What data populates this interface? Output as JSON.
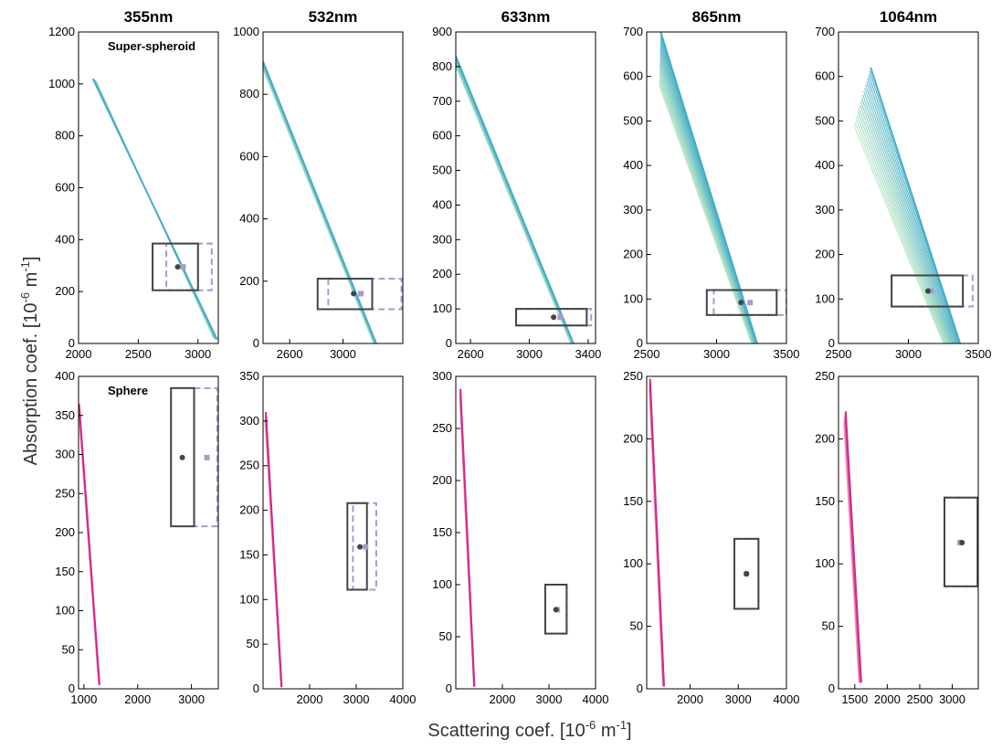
{
  "chart_data": {
    "type": "line",
    "figure": {
      "xlabel": "Scattering coef. [10",
      "xlabel_exp1": "-6",
      "xlabel_mid": " m",
      "xlabel_exp2": "-1",
      "xlabel_end": "]",
      "ylabel": "Absorption coef. [10",
      "ylabel_exp1": "-6",
      "ylabel_mid": " m",
      "ylabel_exp2": "-1",
      "ylabel_end": "]",
      "grid": false,
      "colors": {
        "spheroid_light": "#bde7c4",
        "spheroid_dark": "#43aec8",
        "sphere_light": "#f7b7cf",
        "sphere_dark": "#d3268b",
        "measurement_solid": "#444444",
        "measurement_dashed": "#a79bd1"
      }
    },
    "columns": [
      "355nm",
      "532nm",
      "633nm",
      "865nm",
      "1064nm"
    ],
    "rows": [
      {
        "model": "Super-spheroid",
        "panel_label": "Super-spheroid",
        "panels": [
          {
            "xlim": [
              2000,
              3170
            ],
            "ylim": [
              0,
              1200
            ],
            "xticks": [
              "2000",
              "2500",
              "3000"
            ],
            "yticks": [
              "0",
              "200",
              "400",
              "600",
              "800",
              "1000",
              "1200"
            ],
            "fan": {
              "x0": [
                2150,
                2120
              ],
              "y0": [
                1010,
                1020
              ],
              "x1": [
                3130,
                3160
              ],
              "y1": [
                20,
                15
              ],
              "curves": 12
            },
            "box_solid": {
              "x": [
                2620,
                3000
              ],
              "y": [
                205,
                385
              ]
            },
            "box_dashed": {
              "x": [
                2735,
                3115
              ],
              "y": [
                205,
                385
              ]
            },
            "point_solid": [
              2830,
              295
            ],
            "point_dashed": [
              2875,
              295
            ]
          },
          {
            "xlim": [
              2400,
              3450
            ],
            "ylim": [
              0,
              1000
            ],
            "xticks": [
              "2600",
              "3000"
            ],
            "yticks": [
              "0",
              "200",
              "400",
              "600",
              "800",
              "1000"
            ],
            "fan": {
              "x0": [
                2400,
                2400
              ],
              "y0": [
                880,
                905
              ],
              "x1": [
                3230,
                3250
              ],
              "y1": [
                0,
                0
              ],
              "curves": 12
            },
            "box_solid": {
              "x": [
                2810,
                3220
              ],
              "y": [
                110,
                208
              ]
            },
            "box_dashed": {
              "x": [
                2890,
                3440
              ],
              "y": [
                110,
                208
              ]
            },
            "point_solid": [
              3080,
              160
            ],
            "point_dashed": [
              3135,
              160
            ]
          },
          {
            "xlim": [
              2500,
              3450
            ],
            "ylim": [
              0,
              900
            ],
            "xticks": [
              "2600",
              "3000",
              "3400"
            ],
            "yticks": [
              "0",
              "100",
              "200",
              "300",
              "400",
              "500",
              "600",
              "700",
              "800",
              "900"
            ],
            "fan": {
              "x0": [
                2500,
                2500
              ],
              "y0": [
                800,
                830
              ],
              "x1": [
                3280,
                3300
              ],
              "y1": [
                0,
                0
              ],
              "curves": 12
            },
            "box_solid": {
              "x": [
                2910,
                3390
              ],
              "y": [
                52,
                100
              ]
            },
            "box_dashed": {
              "x": [
                2910,
                3420
              ],
              "y": [
                52,
                100
              ]
            },
            "point_solid": [
              3165,
              76
            ],
            "point_dashed": [
              3210,
              76
            ]
          },
          {
            "xlim": [
              2500,
              3500
            ],
            "ylim": [
              0,
              700
            ],
            "xticks": [
              "2500",
              "3000",
              "3500"
            ],
            "yticks": [
              "0",
              "100",
              "200",
              "300",
              "400",
              "500",
              "600",
              "700"
            ],
            "fan": {
              "x0": [
                2590,
                2600
              ],
              "y0": [
                580,
                700
              ],
              "x1": [
                3250,
                3290
              ],
              "y1": [
                0,
                0
              ],
              "curves": 18
            },
            "box_solid": {
              "x": [
                2930,
                3430
              ],
              "y": [
                64,
                120
              ]
            },
            "box_dashed": {
              "x": [
                2980,
                3500
              ],
              "y": [
                64,
                120
              ]
            },
            "point_solid": [
              3175,
              92
            ],
            "point_dashed": [
              3240,
              92
            ]
          },
          {
            "xlim": [
              2500,
              3500
            ],
            "ylim": [
              0,
              700
            ],
            "xticks": [
              "2500",
              "3000",
              "3500"
            ],
            "yticks": [
              "0",
              "100",
              "200",
              "300",
              "400",
              "500",
              "600",
              "700"
            ],
            "fan": {
              "x0": [
                2610,
                2730
              ],
              "y0": [
                490,
                620
              ],
              "x1": [
                3250,
                3370
              ],
              "y1": [
                0,
                0
              ],
              "curves": 18
            },
            "box_solid": {
              "x": [
                2880,
                3390
              ],
              "y": [
                83,
                153
              ]
            },
            "box_dashed": {
              "x": [
                2880,
                3460
              ],
              "y": [
                83,
                153
              ]
            },
            "point_solid": [
              3140,
              118
            ],
            "point_dashed": [
              3165,
              118
            ]
          }
        ]
      },
      {
        "model": "Sphere",
        "panel_label": "Sphere",
        "panels": [
          {
            "xlim": [
              900,
              3500
            ],
            "ylim": [
              0,
              400
            ],
            "xticks": [
              "1000",
              "2000",
              "3000"
            ],
            "yticks": [
              "0",
              "50",
              "100",
              "150",
              "200",
              "250",
              "300",
              "350",
              "400"
            ],
            "fan": {
              "x0": [
                900,
                910
              ],
              "y0": [
                355,
                365
              ],
              "x1": [
                1270,
                1290
              ],
              "y1": [
                5,
                5
              ],
              "curves": 8
            },
            "box_solid": {
              "x": [
                2620,
                3050
              ],
              "y": [
                208,
                385
              ]
            },
            "box_dashed": {
              "x": [
                3050,
                3480
              ],
              "y": [
                208,
                385
              ]
            },
            "point_solid": [
              2830,
              296
            ],
            "point_dashed": [
              3290,
              296
            ]
          },
          {
            "xlim": [
              1000,
              4000
            ],
            "ylim": [
              0,
              350
            ],
            "xticks": [
              "2000",
              "3000",
              "4000"
            ],
            "yticks": [
              "0",
              "50",
              "100",
              "150",
              "200",
              "250",
              "300",
              "350"
            ],
            "fan": {
              "x0": [
                1040,
                1060
              ],
              "y0": [
                300,
                310
              ],
              "x1": [
                1380,
                1400
              ],
              "y1": [
                2,
                2
              ],
              "curves": 8
            },
            "box_solid": {
              "x": [
                2810,
                3230
              ],
              "y": [
                111,
                208
              ]
            },
            "box_dashed": {
              "x": [
                2930,
                3430
              ],
              "y": [
                111,
                208
              ]
            },
            "point_solid": [
              3080,
              159
            ],
            "point_dashed": [
              3200,
              159
            ]
          },
          {
            "xlim": [
              1000,
              4000
            ],
            "ylim": [
              0,
              300
            ],
            "xticks": [
              "2000",
              "3000",
              "4000"
            ],
            "yticks": [
              "0",
              "50",
              "100",
              "150",
              "200",
              "250",
              "300"
            ],
            "fan": {
              "x0": [
                1080,
                1100
              ],
              "y0": [
                280,
                288
              ],
              "x1": [
                1380,
                1400
              ],
              "y1": [
                2,
                2
              ],
              "curves": 8
            },
            "box_solid": {
              "x": [
                2920,
                3380
              ],
              "y": [
                53,
                100
              ]
            },
            "box_dashed": {
              "x": [
                2920,
                3380
              ],
              "y": [
                53,
                100
              ]
            },
            "point_solid": [
              3150,
              76
            ],
            "point_dashed": [
              3180,
              76
            ]
          },
          {
            "xlim": [
              1100,
              4000
            ],
            "ylim": [
              0,
              250
            ],
            "xticks": [
              "2000",
              "3000",
              "4000"
            ],
            "yticks": [
              "0",
              "50",
              "100",
              "150",
              "200",
              "250"
            ],
            "fan": {
              "x0": [
                1150,
                1170
              ],
              "y0": [
                240,
                248
              ],
              "x1": [
                1430,
                1460
              ],
              "y1": [
                2,
                2
              ],
              "curves": 8
            },
            "box_solid": {
              "x": [
                2920,
                3420
              ],
              "y": [
                64,
                120
              ]
            },
            "box_dashed": {
              "x": [
                2920,
                3420
              ],
              "y": [
                64,
                120
              ]
            },
            "point_solid": [
              3170,
              92
            ],
            "point_dashed": [
              3170,
              92
            ]
          },
          {
            "xlim": [
              1250,
              3400
            ],
            "ylim": [
              0,
              250
            ],
            "xticks": [
              "1500",
              "2000",
              "2500",
              "3000"
            ],
            "yticks": [
              "0",
              "50",
              "100",
              "150",
              "200",
              "250"
            ],
            "fan": {
              "x0": [
                1330,
                1360
              ],
              "y0": [
                213,
                222
              ],
              "x1": [
                1560,
                1600
              ],
              "y1": [
                5,
                5
              ],
              "curves": 8
            },
            "box_solid": {
              "x": [
                2880,
                3390
              ],
              "y": [
                82,
                153
              ]
            },
            "box_dashed": {
              "x": [
                2880,
                3390
              ],
              "y": [
                82,
                153
              ]
            },
            "point_solid": [
              3150,
              117
            ],
            "point_dashed": [
              3120,
              117
            ]
          }
        ]
      }
    ]
  }
}
